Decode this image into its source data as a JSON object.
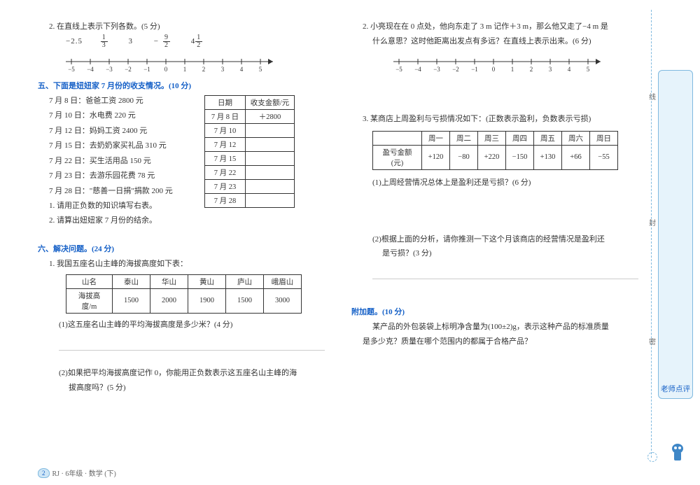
{
  "left": {
    "q2": {
      "prompt": "2. 在直线上表示下列各数。(5 分)",
      "nums": [
        "−2.5",
        "",
        "3",
        "",
        ""
      ],
      "ticks": [
        "−5",
        "−4",
        "−3",
        "−2",
        "−1",
        "0",
        "1",
        "2",
        "3",
        "4",
        "5"
      ]
    },
    "sec5": {
      "title": "五、下面是妞妞家 7 月份的收支情况。(10 分)",
      "events": [
        "7 月 8 日：爸爸工资 2800 元",
        "7 月 10 日：水电费 220 元",
        "7 月 12 日：妈妈工资 2400 元",
        "7 月 15 日：去奶奶家买礼品 310 元",
        "7 月 22 日：买生活用品 150 元",
        "7 月 23 日：去游乐园花费 78 元",
        "7 月 28 日：\"慈善一日捐\"捐款 200 元"
      ],
      "sub1": "1. 请用正负数的知识填写右表。",
      "sub2": "2. 请算出妞妞家 7 月份的结余。",
      "table": {
        "head": [
          "日期",
          "收支金额/元"
        ],
        "rows": [
          [
            "7 月 8 日",
            "＋2800"
          ],
          [
            "7 月 10",
            ""
          ],
          [
            "7 月 12",
            ""
          ],
          [
            "7 月 15",
            ""
          ],
          [
            "7 月 22",
            ""
          ],
          [
            "7 月 23",
            ""
          ],
          [
            "7 月 28",
            ""
          ]
        ]
      }
    },
    "sec6": {
      "title": "六、解决问题。(24 分)",
      "q1": "1. 我国五座名山主峰的海拔高度如下表：",
      "mountTable": {
        "head": [
          "山名",
          "泰山",
          "华山",
          "黄山",
          "庐山",
          "峨眉山"
        ],
        "row": [
          "海拔高度/m",
          "1500",
          "2000",
          "1900",
          "1500",
          "3000"
        ]
      },
      "q1a": "(1)这五座名山主峰的平均海拔高度是多少米？(4 分)",
      "q1b": "(2)如果把平均海拔高度记作 0，你能用正负数表示这五座名山主峰的海",
      "q1b2": "拔高度吗？(5 分)"
    }
  },
  "right": {
    "q2": {
      "line1": "2. 小亮现在在 0 点处，他向东走了 3 m 记作＋3 m，那么他又走了−4 m 是",
      "line2": "什么意思？这时他距离出发点有多远？在直线上表示出来。(6 分)",
      "ticks": [
        "−5",
        "−4",
        "−3",
        "−2",
        "−1",
        "0",
        "1",
        "2",
        "3",
        "4",
        "5"
      ]
    },
    "q3": {
      "title": "3. 某商店上周盈利与亏损情况如下：(正数表示盈利，负数表示亏损)",
      "table": {
        "head": [
          "",
          "周一",
          "周二",
          "周三",
          "周四",
          "周五",
          "周六",
          "周日"
        ],
        "row": [
          "盈亏金额(元)",
          "+120",
          "−80",
          "+220",
          "−150",
          "+130",
          "+66",
          "−55"
        ]
      },
      "q3a": "(1)上周经营情况总体上是盈利还是亏损？(6 分)",
      "q3b1": "(2)根据上面的分析，请你推测一下这个月该商店的经营情况是盈利还",
      "q3b2": "是亏损？(3 分)"
    },
    "bonus": {
      "title": "附加题。(10 分)",
      "line1": "某产品的外包装袋上标明净含量为(100±2)g，表示这种产品的标准质量",
      "line2": "是多少克？质量在哪个范围内的都属于合格产品？"
    }
  },
  "side": {
    "label": "老师点评",
    "v1": "线",
    "v2": "封",
    "v3": "密"
  },
  "footer": {
    "num": "2",
    "text": "RJ · 6年级 · 数学 (下)"
  }
}
